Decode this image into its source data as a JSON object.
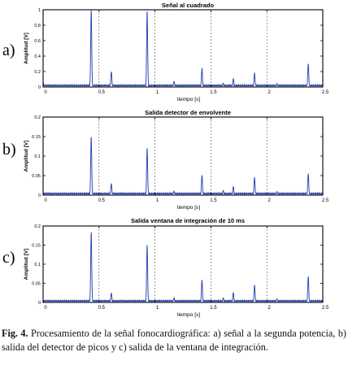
{
  "chart_data": [
    {
      "type": "line",
      "panel_label": "a)",
      "title": "Señal al cuadrado",
      "xlabel": "tiempo [s]",
      "ylabel": "Amplitud [V]",
      "xlim": [
        0,
        2.5
      ],
      "ylim": [
        0,
        1
      ],
      "xticks": [
        "0",
        "0.5",
        "1",
        "1.5",
        "2",
        "2.5"
      ],
      "yticks": [
        "0",
        "0.2",
        "0.4",
        "0.6",
        "0.8",
        "1"
      ],
      "grid": "vertical-dashed",
      "baseline": 0.02,
      "peaks": [
        {
          "x": 0.0,
          "y": 0.06
        },
        {
          "x": 0.43,
          "y": 1.0
        },
        {
          "x": 0.61,
          "y": 0.2
        },
        {
          "x": 0.93,
          "y": 0.98
        },
        {
          "x": 1.17,
          "y": 0.07
        },
        {
          "x": 1.42,
          "y": 0.24
        },
        {
          "x": 1.61,
          "y": 0.05
        },
        {
          "x": 1.7,
          "y": 0.11
        },
        {
          "x": 1.89,
          "y": 0.18
        },
        {
          "x": 2.09,
          "y": 0.04
        },
        {
          "x": 2.37,
          "y": 0.3
        }
      ]
    },
    {
      "type": "line",
      "panel_label": "b)",
      "title": "Salida detector de envolvente",
      "xlabel": "tiempo [s]",
      "ylabel": "Amplitud [V]",
      "xlim": [
        0,
        2.5
      ],
      "ylim": [
        0,
        0.2
      ],
      "xticks": [
        "0",
        "0.5",
        "1",
        "1.5",
        "2",
        "2.5"
      ],
      "yticks": [
        "0",
        "0.05",
        "0.1",
        "0.15",
        "0.2"
      ],
      "grid": "vertical-dashed",
      "baseline": 0.004,
      "peaks": [
        {
          "x": 0.43,
          "y": 0.15
        },
        {
          "x": 0.61,
          "y": 0.03
        },
        {
          "x": 0.93,
          "y": 0.12
        },
        {
          "x": 1.17,
          "y": 0.01
        },
        {
          "x": 1.42,
          "y": 0.05
        },
        {
          "x": 1.61,
          "y": 0.012
        },
        {
          "x": 1.7,
          "y": 0.022
        },
        {
          "x": 1.89,
          "y": 0.045
        },
        {
          "x": 2.09,
          "y": 0.008
        },
        {
          "x": 2.37,
          "y": 0.055
        }
      ]
    },
    {
      "type": "line",
      "panel_label": "c)",
      "title": "Salida ventana de integración de 10 ms",
      "xlabel": "tiempo [s]",
      "ylabel": "Amplitud [V]",
      "xlim": [
        0,
        2.5
      ],
      "ylim": [
        0,
        0.2
      ],
      "xticks": [
        "0",
        "0.5",
        "1",
        "1.5",
        "2",
        "2.5"
      ],
      "yticks": [
        "0",
        "0.05",
        "0.1",
        "0.15",
        "0.2"
      ],
      "grid": "vertical-dashed",
      "baseline": 0.004,
      "peaks": [
        {
          "x": 0.43,
          "y": 0.185
        },
        {
          "x": 0.61,
          "y": 0.025
        },
        {
          "x": 0.93,
          "y": 0.15
        },
        {
          "x": 1.17,
          "y": 0.012
        },
        {
          "x": 1.42,
          "y": 0.058
        },
        {
          "x": 1.61,
          "y": 0.012
        },
        {
          "x": 1.7,
          "y": 0.026
        },
        {
          "x": 1.89,
          "y": 0.045
        },
        {
          "x": 2.09,
          "y": 0.008
        },
        {
          "x": 2.37,
          "y": 0.068
        }
      ]
    }
  ],
  "colors": {
    "line": "#1f3fb0",
    "axes": "#000000",
    "grid": "#555555"
  },
  "caption": {
    "label": "Fig. 4.",
    "text": " Procesamiento de la señal fonocardiográfica: a) señal a la segunda potencia, b) salida del detector de picos y c) salida de la ventana de integración."
  }
}
